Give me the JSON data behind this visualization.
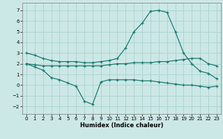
{
  "xlabel": "Humidex (Indice chaleur)",
  "bg_color": "#cce8e6",
  "grid_color": "#aed4d1",
  "line_color": "#1a7a70",
  "xlim": [
    -0.5,
    23.5
  ],
  "ylim": [
    -2.7,
    7.7
  ],
  "xticks": [
    0,
    1,
    2,
    3,
    4,
    5,
    6,
    7,
    8,
    9,
    10,
    11,
    12,
    13,
    14,
    15,
    16,
    17,
    18,
    19,
    20,
    21,
    22,
    23
  ],
  "yticks": [
    -2,
    -1,
    0,
    1,
    2,
    3,
    4,
    5,
    6,
    7
  ],
  "line1_x": [
    0,
    1,
    2,
    3,
    4,
    5,
    6,
    7,
    8,
    9,
    10,
    11,
    12,
    13,
    14,
    15,
    16,
    17,
    18,
    19,
    20,
    21,
    22,
    23
  ],
  "line1_y": [
    3.0,
    2.8,
    2.5,
    2.3,
    2.2,
    2.2,
    2.2,
    2.1,
    2.1,
    2.2,
    2.3,
    2.5,
    3.5,
    5.0,
    5.8,
    6.9,
    7.0,
    6.8,
    5.0,
    3.0,
    2.0,
    1.3,
    1.1,
    0.6
  ],
  "line2_x": [
    0,
    1,
    2,
    3,
    4,
    5,
    6,
    7,
    8,
    9,
    10,
    11,
    12,
    13,
    14,
    15,
    16,
    17,
    18,
    19,
    20,
    21,
    22,
    23
  ],
  "line2_y": [
    2.0,
    1.9,
    1.8,
    1.8,
    1.8,
    1.8,
    1.8,
    1.8,
    1.8,
    1.8,
    1.9,
    2.0,
    2.0,
    2.1,
    2.1,
    2.1,
    2.2,
    2.2,
    2.3,
    2.4,
    2.5,
    2.5,
    2.0,
    1.8
  ],
  "line3_x": [
    0,
    1,
    2,
    3,
    4,
    5,
    6,
    7,
    8,
    9,
    10,
    11,
    12,
    13,
    14,
    15,
    16,
    17,
    18,
    19,
    20,
    21,
    22,
    23
  ],
  "line3_y": [
    2.0,
    1.7,
    1.4,
    0.7,
    0.5,
    0.2,
    -0.1,
    -1.5,
    -1.8,
    0.3,
    0.5,
    0.5,
    0.5,
    0.5,
    0.4,
    0.4,
    0.3,
    0.2,
    0.1,
    0.0,
    0.0,
    -0.1,
    -0.2,
    -0.1
  ],
  "tick_fontsize": 5.0,
  "xlabel_fontsize": 6.0
}
